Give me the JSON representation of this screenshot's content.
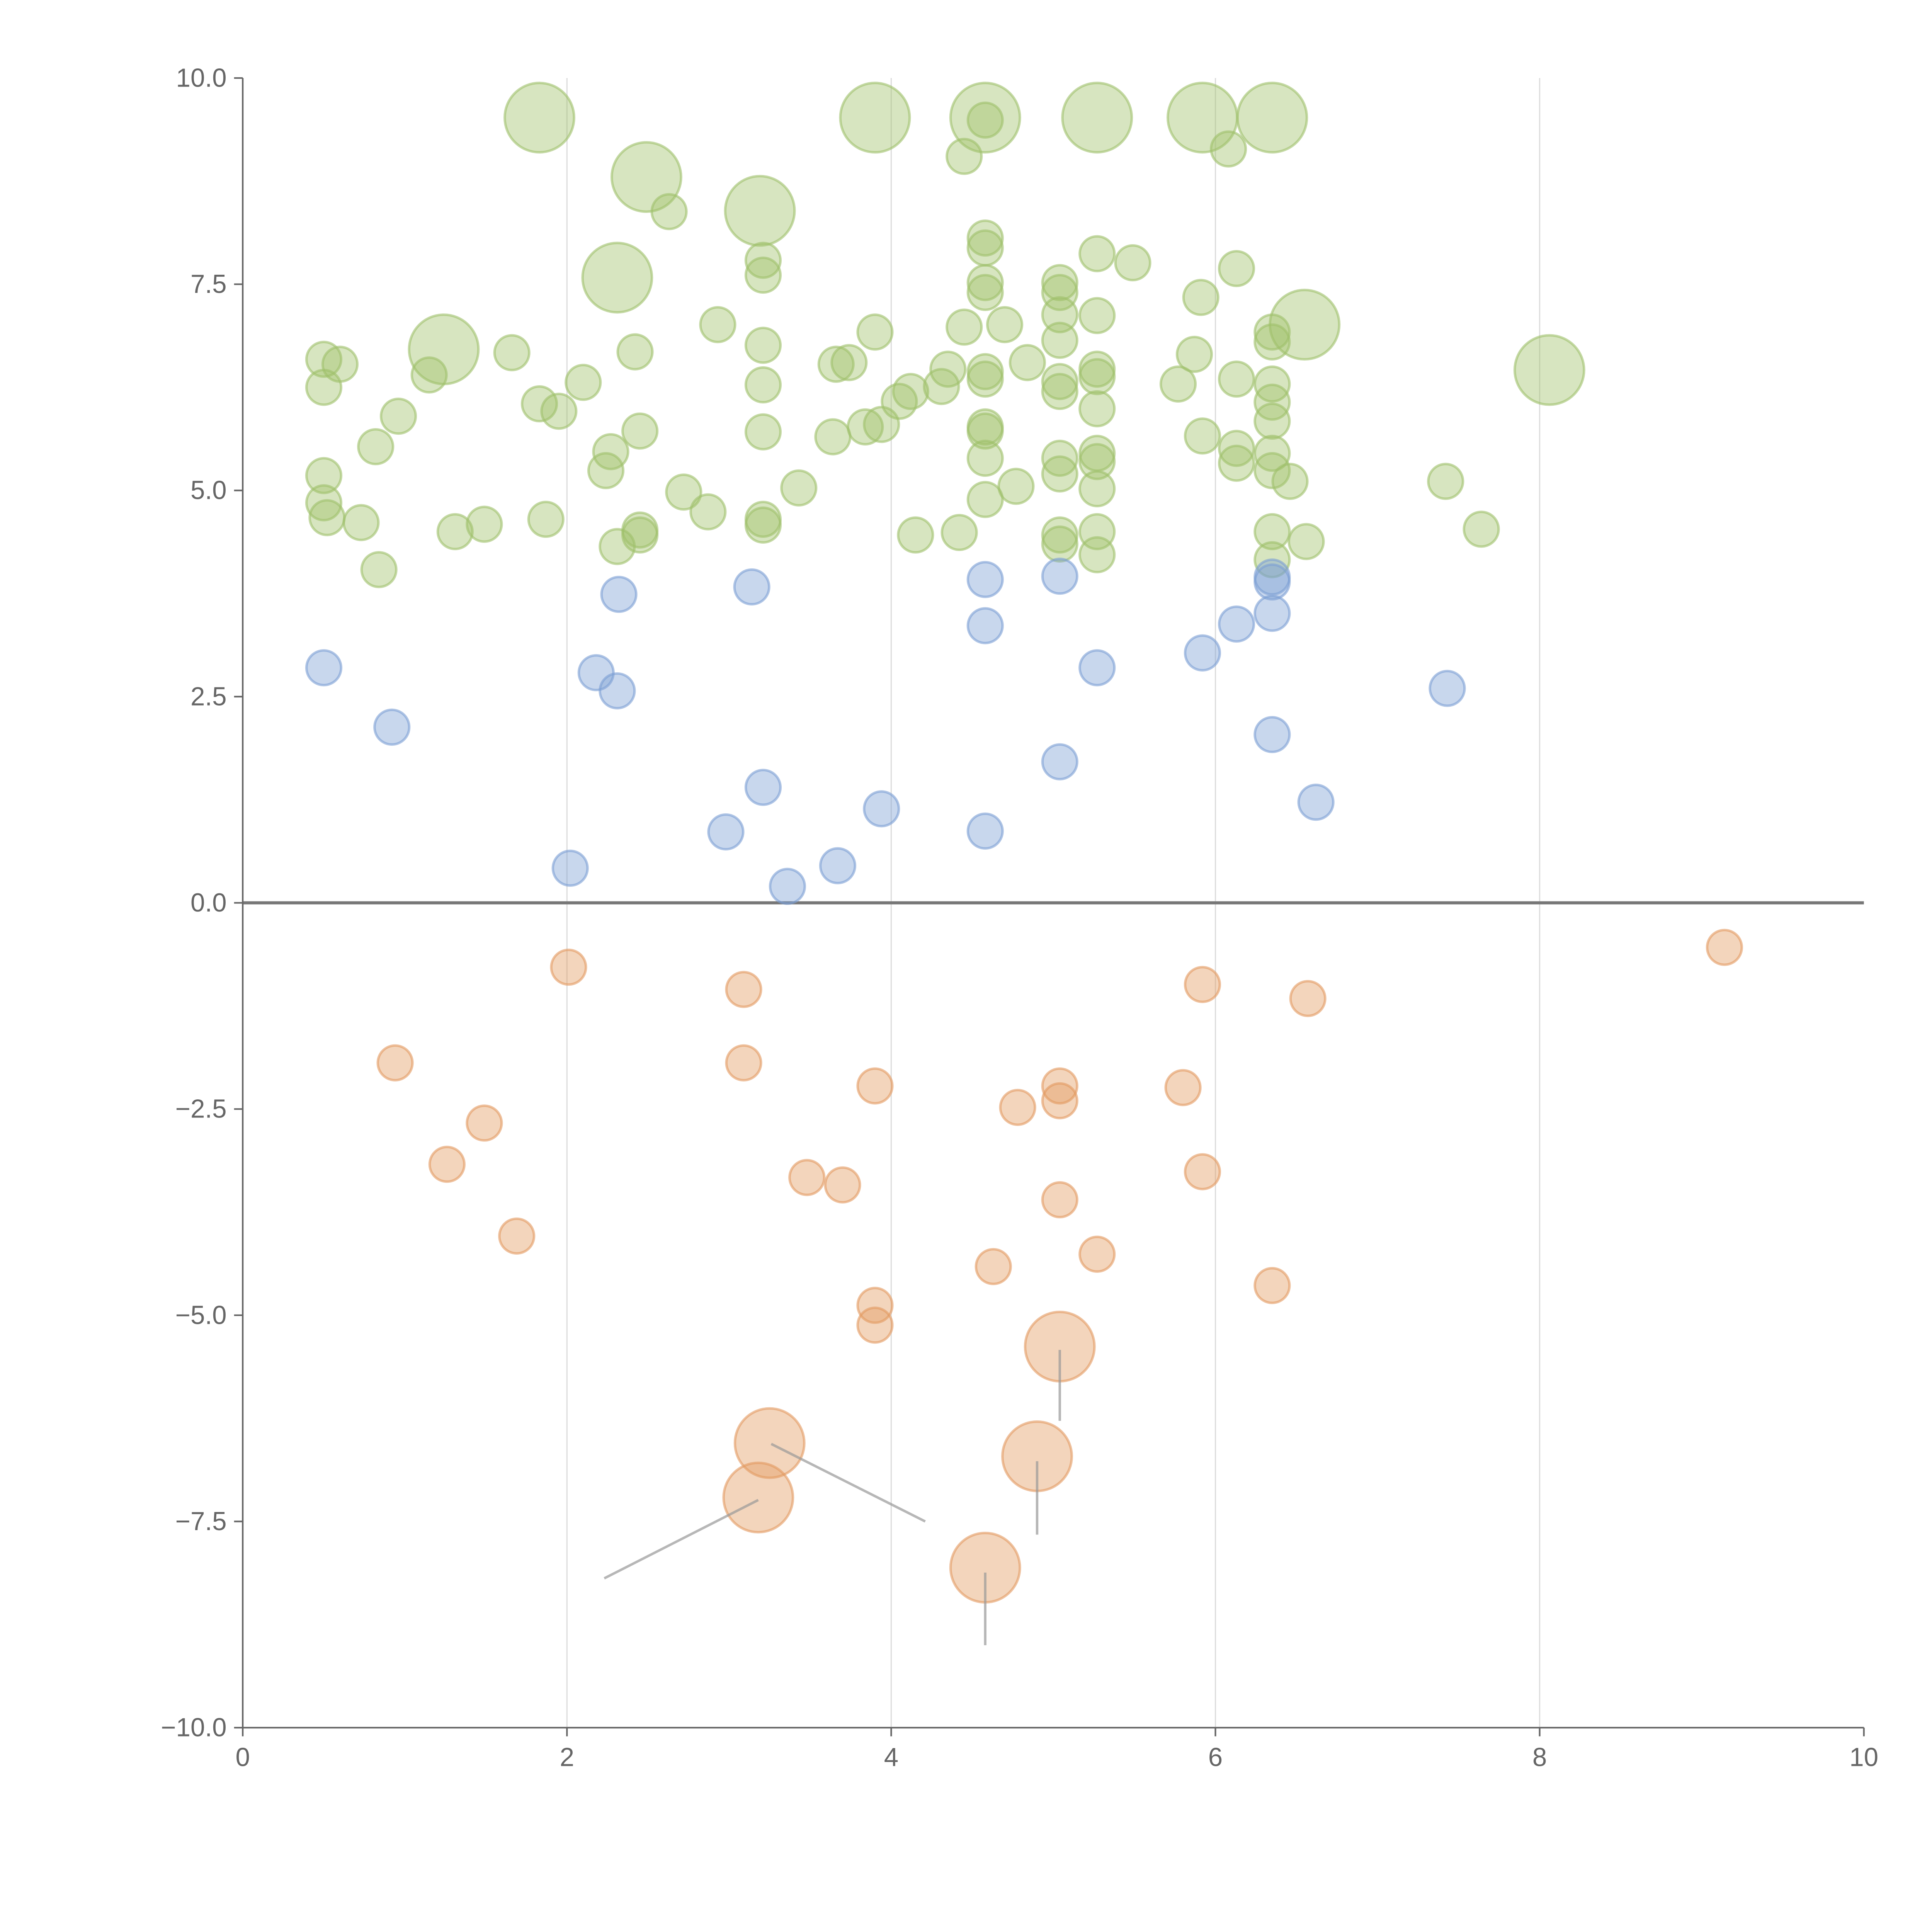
{
  "chart_data": {
    "type": "scatter",
    "title": "",
    "xlabel": "",
    "ylabel": "",
    "xlim": [
      0,
      10
    ],
    "ylim": [
      -10,
      10
    ],
    "grid": "vertical",
    "xticks": [
      0,
      2,
      4,
      6,
      8,
      10
    ],
    "xtick_labels": [
      "0",
      "2",
      "4",
      "6",
      "8",
      "10"
    ],
    "yticks": [
      10,
      7.5,
      5,
      2.5,
      0,
      -2.5,
      -5,
      -7.5,
      -10
    ],
    "ytick_labels": [
      "10.0",
      "7.5",
      "5.0",
      "2.5",
      "0.0",
      "−2.5",
      "−5.0",
      "−7.5",
      "−10.0"
    ],
    "point_format": "[x, y, size]",
    "series": [
      {
        "name": "green",
        "color": "#9fc06a",
        "points": [
          [
            1.83,
            9.52,
            4
          ],
          [
            3.9,
            9.52,
            4
          ],
          [
            4.58,
            9.52,
            4
          ],
          [
            5.27,
            9.52,
            4
          ],
          [
            5.92,
            9.52,
            4
          ],
          [
            6.35,
            9.52,
            4
          ],
          [
            2.49,
            8.8,
            4
          ],
          [
            3.19,
            8.39,
            4
          ],
          [
            2.31,
            7.58,
            4
          ],
          [
            1.24,
            6.71,
            4
          ],
          [
            6.55,
            7.01,
            4
          ],
          [
            8.06,
            6.46,
            4
          ],
          [
            4.58,
            9.49,
            1
          ],
          [
            4.45,
            9.05,
            1
          ],
          [
            6.08,
            9.14,
            1
          ],
          [
            2.63,
            8.38,
            1
          ],
          [
            4.58,
            8.06,
            1
          ],
          [
            4.58,
            7.94,
            1
          ],
          [
            5.27,
            7.87,
            1
          ],
          [
            5.49,
            7.76,
            1
          ],
          [
            3.21,
            7.79,
            1
          ],
          [
            3.21,
            7.61,
            1
          ],
          [
            4.58,
            7.52,
            1
          ],
          [
            4.58,
            7.4,
            1
          ],
          [
            5.04,
            7.52,
            1
          ],
          [
            5.04,
            7.4,
            1
          ],
          [
            5.91,
            7.34,
            1
          ],
          [
            6.13,
            7.69,
            1
          ],
          [
            5.27,
            7.12,
            1
          ],
          [
            5.04,
            7.13,
            1
          ],
          [
            4.7,
            7.01,
            1
          ],
          [
            4.45,
            6.98,
            1
          ],
          [
            3.9,
            6.92,
            1
          ],
          [
            2.93,
            7.01,
            1
          ],
          [
            3.21,
            6.76,
            1
          ],
          [
            2.42,
            6.68,
            1
          ],
          [
            1.66,
            6.67,
            1
          ],
          [
            0.5,
            6.59,
            1
          ],
          [
            0.6,
            6.53,
            1
          ],
          [
            1.15,
            6.4,
            1
          ],
          [
            0.5,
            6.25,
            1
          ],
          [
            2.1,
            6.31,
            1
          ],
          [
            3.66,
            6.53,
            1
          ],
          [
            3.74,
            6.55,
            1
          ],
          [
            4.35,
            6.47,
            1
          ],
          [
            4.58,
            6.44,
            1
          ],
          [
            4.58,
            6.35,
            1
          ],
          [
            4.84,
            6.55,
            1
          ],
          [
            5.04,
            6.82,
            1
          ],
          [
            5.27,
            6.47,
            1
          ],
          [
            5.27,
            6.38,
            1
          ],
          [
            5.04,
            6.32,
            1
          ],
          [
            5.04,
            6.2,
            1
          ],
          [
            5.77,
            6.29,
            1
          ],
          [
            5.87,
            6.65,
            1
          ],
          [
            6.13,
            6.35,
            1
          ],
          [
            6.35,
            6.29,
            1
          ],
          [
            6.35,
            6.07,
            1
          ],
          [
            6.35,
            5.84,
            1
          ],
          [
            6.35,
            6.8,
            1
          ],
          [
            6.35,
            6.92,
            1
          ],
          [
            3.21,
            6.28,
            1
          ],
          [
            4.12,
            6.2,
            1
          ],
          [
            4.31,
            6.26,
            1
          ],
          [
            4.05,
            6.08,
            1
          ],
          [
            1.83,
            6.05,
            1
          ],
          [
            1.95,
            5.96,
            1
          ],
          [
            0.96,
            5.9,
            1
          ],
          [
            0.82,
            5.53,
            1
          ],
          [
            3.21,
            5.71,
            1
          ],
          [
            3.64,
            5.65,
            1
          ],
          [
            3.84,
            5.77,
            1
          ],
          [
            3.94,
            5.8,
            1
          ],
          [
            4.58,
            5.77,
            1
          ],
          [
            4.58,
            5.72,
            1
          ],
          [
            4.58,
            5.39,
            1
          ],
          [
            5.27,
            5.99,
            1
          ],
          [
            5.92,
            5.66,
            1
          ],
          [
            6.13,
            5.51,
            1
          ],
          [
            6.13,
            5.33,
            1
          ],
          [
            6.35,
            5.45,
            1
          ],
          [
            6.35,
            5.24,
            1
          ],
          [
            6.46,
            5.11,
            1
          ],
          [
            7.42,
            5.11,
            1
          ],
          [
            5.27,
            5.45,
            1
          ],
          [
            5.27,
            5.35,
            1
          ],
          [
            5.04,
            5.39,
            1
          ],
          [
            5.04,
            5.2,
            1
          ],
          [
            5.27,
            5.02,
            1
          ],
          [
            4.77,
            5.05,
            1
          ],
          [
            4.58,
            4.89,
            1
          ],
          [
            3.43,
            5.03,
            1
          ],
          [
            2.72,
            4.98,
            1
          ],
          [
            2.27,
            5.47,
            1
          ],
          [
            2.24,
            5.24,
            1
          ],
          [
            2.45,
            5.72,
            1
          ],
          [
            0.5,
            5.18,
            1
          ],
          [
            0.5,
            4.85,
            1
          ],
          [
            0.52,
            4.67,
            1
          ],
          [
            0.73,
            4.61,
            1
          ],
          [
            1.31,
            4.5,
            1
          ],
          [
            1.49,
            4.59,
            1
          ],
          [
            1.87,
            4.65,
            1
          ],
          [
            2.87,
            4.74,
            1
          ],
          [
            3.21,
            4.65,
            1
          ],
          [
            3.21,
            4.58,
            1
          ],
          [
            2.45,
            4.52,
            1
          ],
          [
            2.45,
            4.46,
            1
          ],
          [
            2.31,
            4.32,
            1
          ],
          [
            0.84,
            4.04,
            1
          ],
          [
            4.15,
            4.46,
            1
          ],
          [
            4.42,
            4.49,
            1
          ],
          [
            5.04,
            4.46,
            1
          ],
          [
            5.04,
            4.35,
            1
          ],
          [
            5.27,
            4.5,
            1
          ],
          [
            5.27,
            4.22,
            1
          ],
          [
            6.35,
            4.5,
            1
          ],
          [
            6.35,
            4.16,
            1
          ],
          [
            6.56,
            4.38,
            1
          ],
          [
            7.64,
            4.53,
            1
          ]
        ]
      },
      {
        "name": "blue",
        "color": "#7b9fd4",
        "points": [
          [
            0.5,
            2.85,
            1
          ],
          [
            0.92,
            2.13,
            1
          ],
          [
            2.02,
            0.42,
            1
          ],
          [
            2.18,
            2.79,
            1
          ],
          [
            2.31,
            2.57,
            1
          ],
          [
            2.32,
            3.74,
            1
          ],
          [
            2.98,
            0.86,
            1
          ],
          [
            3.14,
            3.83,
            1
          ],
          [
            3.21,
            1.4,
            1
          ],
          [
            3.36,
            0.2,
            1
          ],
          [
            3.67,
            0.45,
            1
          ],
          [
            3.94,
            1.14,
            1
          ],
          [
            4.58,
            3.92,
            1
          ],
          [
            4.58,
            3.36,
            1
          ],
          [
            4.58,
            0.87,
            1
          ],
          [
            5.04,
            3.96,
            1
          ],
          [
            5.04,
            1.71,
            1
          ],
          [
            5.27,
            2.85,
            1
          ],
          [
            5.92,
            3.03,
            1
          ],
          [
            6.13,
            3.38,
            1
          ],
          [
            6.35,
            3.89,
            1
          ],
          [
            6.35,
            3.95,
            1
          ],
          [
            6.35,
            3.51,
            1
          ],
          [
            6.35,
            2.04,
            1
          ],
          [
            6.62,
            1.22,
            1
          ],
          [
            7.43,
            2.6,
            1
          ]
        ]
      },
      {
        "name": "orange",
        "color": "#e39a60",
        "points": [
          [
            2.01,
            -0.78,
            1
          ],
          [
            0.94,
            -1.94,
            1
          ],
          [
            1.26,
            -3.17,
            1
          ],
          [
            1.49,
            -2.67,
            1
          ],
          [
            1.69,
            -4.04,
            1
          ],
          [
            3.09,
            -1.05,
            1
          ],
          [
            3.09,
            -1.94,
            1
          ],
          [
            3.48,
            -3.33,
            1
          ],
          [
            3.7,
            -3.42,
            1
          ],
          [
            3.9,
            -2.22,
            1
          ],
          [
            3.9,
            -4.88,
            1
          ],
          [
            3.9,
            -5.12,
            1
          ],
          [
            4.63,
            -4.41,
            1
          ],
          [
            4.78,
            -2.48,
            1
          ],
          [
            5.04,
            -2.22,
            1
          ],
          [
            5.04,
            -2.4,
            1
          ],
          [
            5.04,
            -3.6,
            1
          ],
          [
            5.27,
            -4.26,
            1
          ],
          [
            5.8,
            -2.24,
            1
          ],
          [
            5.92,
            -0.99,
            1
          ],
          [
            5.92,
            -3.26,
            1
          ],
          [
            6.35,
            -4.64,
            1
          ],
          [
            6.57,
            -1.16,
            1
          ],
          [
            9.14,
            -0.54,
            1
          ],
          [
            5.04,
            -5.38,
            4
          ],
          [
            3.25,
            -6.55,
            4
          ],
          [
            3.18,
            -7.21,
            4
          ],
          [
            4.9,
            -6.71,
            4
          ],
          [
            4.58,
            -8.06,
            4
          ]
        ]
      }
    ],
    "annotations_leader_lines": [
      [
        5.04,
        -5.42,
        5.04,
        -6.28
      ],
      [
        3.26,
        -6.56,
        4.21,
        -7.5
      ],
      [
        3.18,
        -7.24,
        2.23,
        -8.19
      ],
      [
        4.9,
        -6.77,
        4.9,
        -7.66
      ],
      [
        4.58,
        -8.12,
        4.58,
        -9.0
      ]
    ]
  }
}
